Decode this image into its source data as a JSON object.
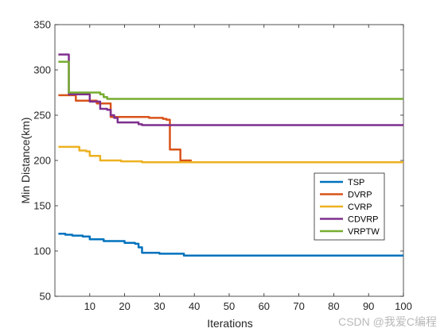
{
  "chart_data": {
    "type": "line",
    "title": "",
    "xlabel": "Iterations",
    "ylabel": "Min Distance(km)",
    "xlim": [
      0,
      100
    ],
    "ylim": [
      50,
      350
    ],
    "xticks": [
      10,
      20,
      30,
      40,
      50,
      60,
      70,
      80,
      90,
      100
    ],
    "yticks": [
      50,
      100,
      150,
      200,
      250,
      300,
      350
    ],
    "grid": false,
    "legend_position": "lower-right",
    "series": [
      {
        "name": "TSP",
        "color": "#0072BD",
        "points": [
          [
            1,
            119
          ],
          [
            3,
            118
          ],
          [
            5,
            117
          ],
          [
            7,
            117
          ],
          [
            8,
            116
          ],
          [
            9,
            116
          ],
          [
            10,
            113
          ],
          [
            13,
            113
          ],
          [
            14,
            111
          ],
          [
            19,
            111
          ],
          [
            20,
            109
          ],
          [
            22,
            109
          ],
          [
            23,
            108
          ],
          [
            24,
            104
          ],
          [
            25,
            98
          ],
          [
            29,
            98
          ],
          [
            30,
            97
          ],
          [
            36,
            97
          ],
          [
            37,
            95
          ],
          [
            100,
            95
          ]
        ]
      },
      {
        "name": "DVRP",
        "color": "#D95319",
        "points": [
          [
            1,
            272
          ],
          [
            5,
            272
          ],
          [
            6,
            266
          ],
          [
            11,
            266
          ],
          [
            12,
            263
          ],
          [
            15,
            263
          ],
          [
            16,
            248
          ],
          [
            17,
            248
          ],
          [
            18,
            248
          ],
          [
            26,
            248
          ],
          [
            27,
            247
          ],
          [
            31,
            246
          ],
          [
            32,
            245
          ],
          [
            33,
            212
          ],
          [
            35,
            212
          ],
          [
            36,
            200
          ],
          [
            38,
            200
          ],
          [
            39,
            198
          ],
          [
            100,
            198
          ]
        ]
      },
      {
        "name": "CVRP",
        "color": "#EDB120",
        "points": [
          [
            1,
            215
          ],
          [
            6,
            215
          ],
          [
            7,
            211
          ],
          [
            9,
            210
          ],
          [
            10,
            205
          ],
          [
            12,
            205
          ],
          [
            13,
            200
          ],
          [
            18,
            200
          ],
          [
            19,
            199
          ],
          [
            24,
            199
          ],
          [
            25,
            198
          ],
          [
            100,
            198
          ]
        ]
      },
      {
        "name": "CDVRP",
        "color": "#7E2F8E",
        "points": [
          [
            1,
            317
          ],
          [
            2,
            317
          ],
          [
            3,
            317
          ],
          [
            4,
            273
          ],
          [
            9,
            273
          ],
          [
            10,
            265
          ],
          [
            12,
            265
          ],
          [
            13,
            257
          ],
          [
            15,
            256
          ],
          [
            16,
            250
          ],
          [
            17,
            247
          ],
          [
            18,
            242
          ],
          [
            23,
            242
          ],
          [
            24,
            240
          ],
          [
            25,
            239
          ],
          [
            100,
            239
          ]
        ]
      },
      {
        "name": "VRPTW",
        "color": "#77AC30",
        "points": [
          [
            1,
            309
          ],
          [
            3,
            309
          ],
          [
            4,
            275
          ],
          [
            10,
            275
          ],
          [
            12,
            275
          ],
          [
            13,
            273
          ],
          [
            14,
            270
          ],
          [
            15,
            268
          ],
          [
            100,
            268
          ]
        ]
      }
    ]
  },
  "watermark": "CSDN @我爱C编程"
}
